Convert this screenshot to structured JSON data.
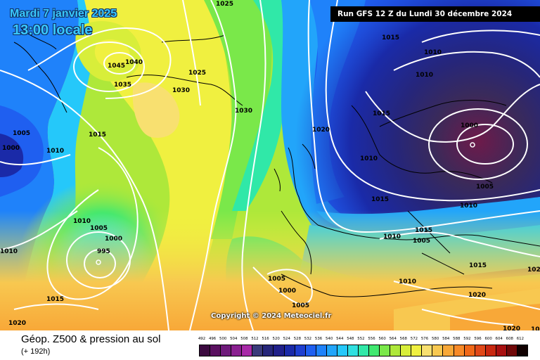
{
  "title": {
    "date": "Mardi 7 janvier 2025",
    "time": "13:00 locale"
  },
  "run_info": "Run GFS 12 Z du Lundi 30 décembre 2024",
  "copyright": "Copyright © 2024 Meteociel.fr",
  "footer": {
    "title": "Géop. Z500 & pression au sol",
    "subtitle": "(+ 192h)"
  },
  "legend": {
    "ticks": [
      "492",
      "496",
      "500",
      "504",
      "508",
      "512",
      "516",
      "520",
      "524",
      "528",
      "532",
      "536",
      "540",
      "544",
      "548",
      "552",
      "556",
      "560",
      "564",
      "568",
      "572",
      "576",
      "580",
      "584",
      "588",
      "592",
      "596",
      "600",
      "604",
      "608",
      "612"
    ],
    "colors": [
      "#3b0a3f",
      "#5a1060",
      "#6e1a7a",
      "#8a2090",
      "#a82aa8",
      "#3a3a7a",
      "#26267a",
      "#20208a",
      "#1a2aa8",
      "#1e3fd0",
      "#1f5ff0",
      "#1f82fa",
      "#22a5fa",
      "#25c8fa",
      "#30e0e0",
      "#30e8a8",
      "#40e870",
      "#7ae84a",
      "#aee83a",
      "#d8ee3a",
      "#f0f040",
      "#f8e070",
      "#f8c850",
      "#f8a838",
      "#f88a28",
      "#f06818",
      "#e04818",
      "#c82810",
      "#a81010",
      "#700808",
      "#100000"
    ]
  },
  "pressure_labels": [
    {
      "text": "1025"
    },
    {
      "text": "1045"
    },
    {
      "text": "1040"
    },
    {
      "text": "1035"
    },
    {
      "text": "1030"
    },
    {
      "text": "1025"
    },
    {
      "text": "1030"
    },
    {
      "text": "1015"
    },
    {
      "text": "1005"
    },
    {
      "text": "1000"
    },
    {
      "text": "1010"
    },
    {
      "text": "1010"
    },
    {
      "text": "1005"
    },
    {
      "text": "1000"
    },
    {
      "text": "995"
    },
    {
      "text": "1015"
    },
    {
      "text": "1020"
    },
    {
      "text": "1010"
    },
    {
      "text": "1015"
    },
    {
      "text": "1010"
    },
    {
      "text": "1010"
    },
    {
      "text": "1015"
    },
    {
      "text": "1020"
    },
    {
      "text": "1010"
    },
    {
      "text": "1000"
    },
    {
      "text": "1005"
    },
    {
      "text": "1015"
    },
    {
      "text": "1010"
    },
    {
      "text": "1010"
    },
    {
      "text": "1015"
    },
    {
      "text": "1005"
    },
    {
      "text": "1005"
    },
    {
      "text": "1015"
    },
    {
      "text": "1000"
    },
    {
      "text": "1005"
    },
    {
      "text": "1010"
    },
    {
      "text": "1020"
    },
    {
      "text": "1020"
    },
    {
      "text": "1020"
    },
    {
      "text": "1020"
    }
  ],
  "lows": [
    {
      "text": "1000"
    },
    {
      "text": "995"
    }
  ]
}
